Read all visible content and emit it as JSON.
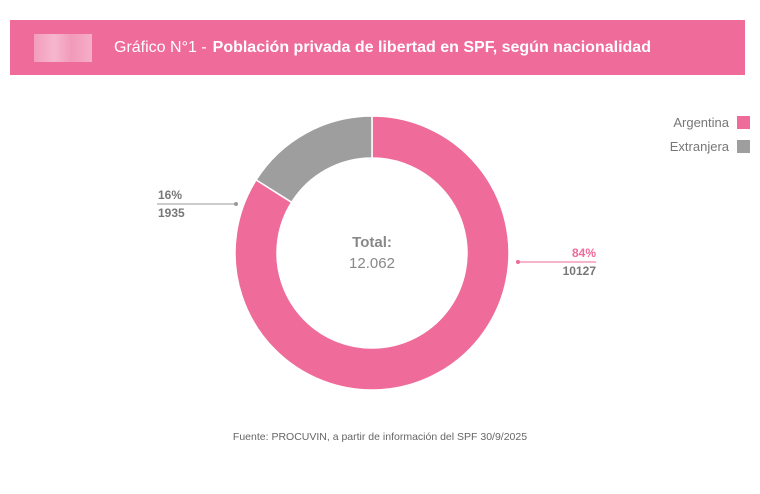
{
  "header": {
    "prefix": "Gráfico N°1 -",
    "title": "Población privada de libertad en SPF, según nacionalidad",
    "color": "#ee6b9a"
  },
  "chart_data": {
    "type": "pie",
    "variant": "donut",
    "categories": [
      "Argentina",
      "Extranjera"
    ],
    "values": [
      10127,
      1935
    ],
    "percent_labels": [
      "84%",
      "16%"
    ],
    "value_labels": [
      "10127",
      "1935"
    ],
    "colors": [
      "#ee6b9a",
      "#9e9e9e"
    ],
    "center_label": "Total:",
    "center_value": "12.062",
    "legend": "top-right"
  },
  "footer": {
    "source": "Fuente: PROCUVIN, a partir de información del SPF 30/9/2025"
  }
}
